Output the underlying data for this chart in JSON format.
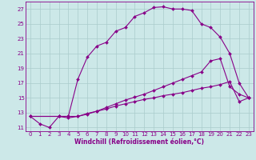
{
  "xlabel": "Windchill (Refroidissement éolien,°C)",
  "bg_color": "#cce8e8",
  "grid_color": "#aacccc",
  "line_color": "#880088",
  "xlim": [
    -0.5,
    23.5
  ],
  "ylim": [
    10.5,
    28.0
  ],
  "yticks": [
    11,
    13,
    15,
    17,
    19,
    21,
    23,
    25,
    27
  ],
  "xticks": [
    0,
    1,
    2,
    3,
    4,
    5,
    6,
    7,
    8,
    9,
    10,
    11,
    12,
    13,
    14,
    15,
    16,
    17,
    18,
    19,
    20,
    21,
    22,
    23
  ],
  "curve1_x": [
    0,
    1,
    2,
    3,
    4,
    5,
    6,
    7,
    8,
    9,
    10,
    11,
    12,
    13,
    14,
    15,
    16,
    17,
    18,
    19,
    20,
    21,
    22,
    23
  ],
  "curve1_y": [
    12.5,
    11.5,
    11.0,
    12.5,
    12.5,
    17.5,
    20.5,
    22.0,
    22.5,
    24.0,
    24.5,
    26.0,
    26.5,
    27.2,
    27.3,
    27.0,
    27.0,
    26.8,
    25.0,
    24.5,
    23.2,
    21.0,
    17.0,
    15.0
  ],
  "curve2_x": [
    0,
    3,
    4,
    5,
    6,
    7,
    8,
    9,
    10,
    11,
    12,
    13,
    14,
    15,
    16,
    17,
    18,
    19,
    20,
    21,
    22,
    23
  ],
  "curve2_y": [
    12.5,
    12.5,
    12.5,
    12.5,
    12.8,
    13.2,
    13.7,
    14.2,
    14.7,
    15.1,
    15.5,
    16.0,
    16.5,
    17.0,
    17.5,
    18.0,
    18.5,
    20.0,
    20.3,
    16.5,
    15.5,
    15.0
  ],
  "curve3_x": [
    0,
    3,
    4,
    5,
    6,
    7,
    8,
    9,
    10,
    11,
    12,
    13,
    14,
    15,
    16,
    17,
    18,
    19,
    20,
    21,
    22,
    23
  ],
  "curve3_y": [
    12.5,
    12.5,
    12.3,
    12.5,
    12.9,
    13.2,
    13.5,
    13.9,
    14.2,
    14.5,
    14.8,
    15.0,
    15.3,
    15.5,
    15.7,
    16.0,
    16.3,
    16.5,
    16.8,
    17.2,
    14.5,
    15.0
  ],
  "xlabel_fontsize": 5.5,
  "tick_fontsize": 5.0,
  "marker_size": 2.0,
  "line_width": 0.8
}
